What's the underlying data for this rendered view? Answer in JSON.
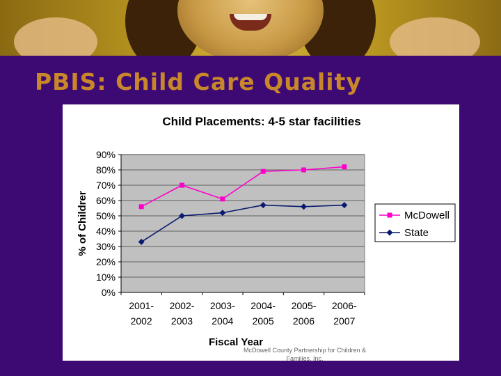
{
  "slide": {
    "title": "PBIS: Child Care Quality",
    "footer": "McDowell County Partnership for Children & Families, Inc."
  },
  "colors": {
    "background": "#3d0a73",
    "title": "#c8872a",
    "plot_area": "#c0c0c0",
    "mcdowell": "#ff00cc",
    "state": "#0a1a6e"
  },
  "chart_data": {
    "type": "line",
    "title": "Child Placements: 4-5 star facilities",
    "xlabel": "Fiscal Year",
    "ylabel": "% of Childrer",
    "categories": [
      [
        "2001-",
        "2002"
      ],
      [
        "2002-",
        "2003"
      ],
      [
        "2003-",
        "2004"
      ],
      [
        "2004-",
        "2005"
      ],
      [
        "2005-",
        "2006"
      ],
      [
        "2006-",
        "2007"
      ]
    ],
    "ylim": [
      0,
      90
    ],
    "yticks": [
      "0%",
      "10%",
      "20%",
      "30%",
      "40%",
      "50%",
      "60%",
      "70%",
      "80%",
      "90%"
    ],
    "grid": true,
    "legend": "right",
    "series": [
      {
        "name": "McDowell",
        "marker": "square",
        "values": [
          56,
          70,
          61,
          79,
          80,
          82
        ]
      },
      {
        "name": "State",
        "marker": "diamond",
        "values": [
          33,
          50,
          52,
          57,
          56,
          57
        ]
      }
    ]
  }
}
